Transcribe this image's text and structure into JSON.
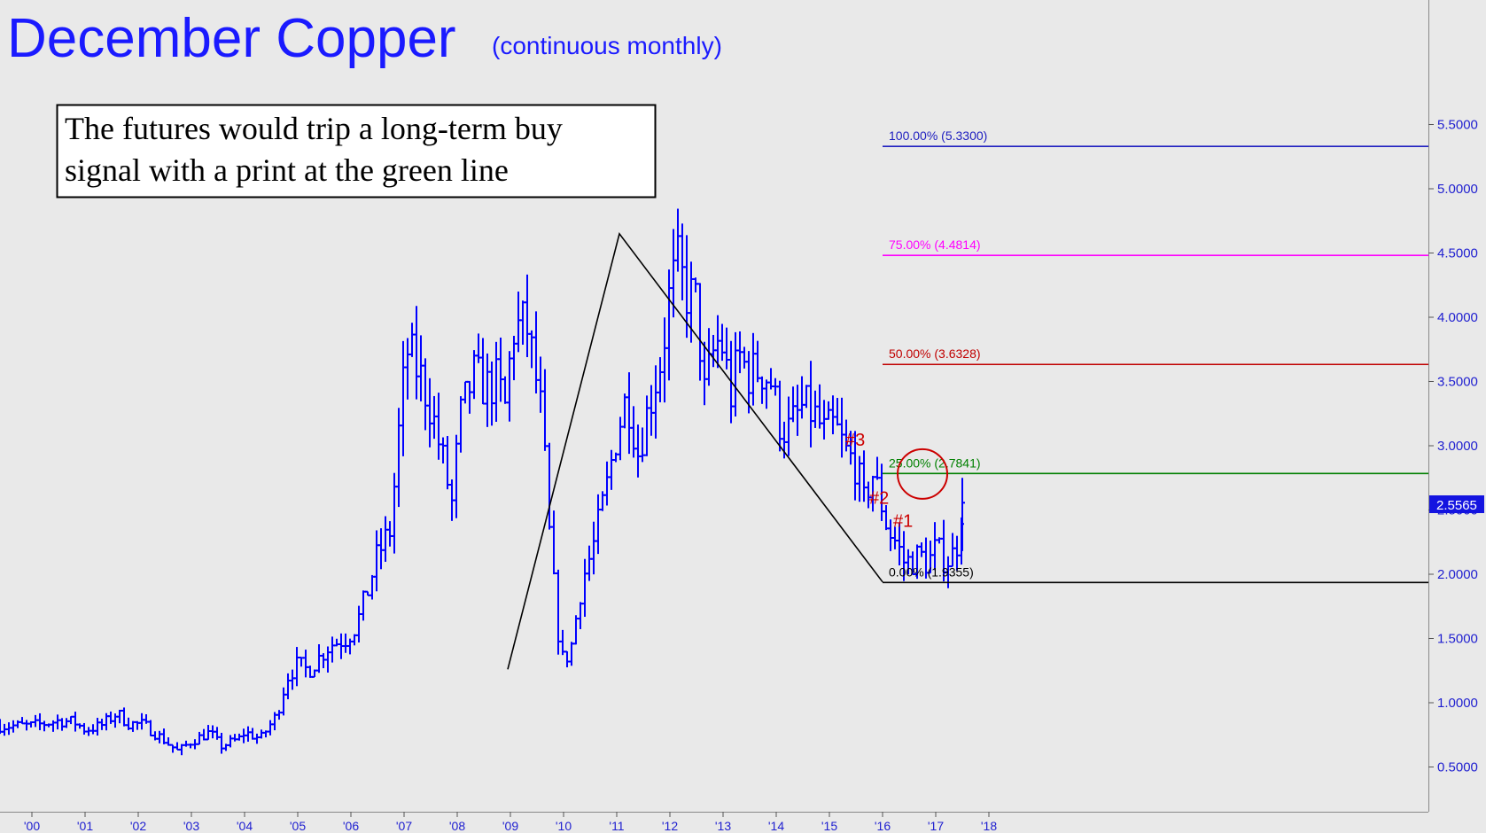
{
  "chart_data": {
    "type": "ohlc-bar",
    "title": "December Copper",
    "subtitle": "(continuous monthly)",
    "annotation": [
      "The futures would trip a long-term buy",
      "signal with a print at the green line"
    ],
    "x_tick_labels": [
      "'00",
      "'01",
      "'02",
      "'03",
      "'04",
      "'05",
      "'06",
      "'07",
      "'08",
      "'09",
      "'10",
      "'11",
      "'12",
      "'13",
      "'14",
      "'15",
      "'16",
      "'17",
      "'18"
    ],
    "y_tick_labels": [
      "0.5000",
      "1.0000",
      "1.5000",
      "2.0000",
      "2.5000",
      "3.0000",
      "3.5000",
      "4.0000",
      "4.5000",
      "5.0000",
      "5.5000"
    ],
    "ylim": [
      0.15,
      6.0
    ],
    "xlim": [
      1999.4,
      2019.9
    ],
    "last_price": "2.5565",
    "last_price_value": 2.5565,
    "colors": {
      "bars": "#0000ff",
      "background": "#e9e9e9",
      "fib_100": "#2020c0",
      "fib_75": "#ff00ff",
      "fib_50": "#c00000",
      "fib_25": "#008000",
      "fib_0": "#000000",
      "wave_labels": "#cc0000",
      "circle": "#cc0000"
    },
    "fib_levels": [
      {
        "label": "100.00% (5.3300)",
        "value": 5.33,
        "color": "#2020c0",
        "start": 2016.0
      },
      {
        "label": "75.00% (4.4814)",
        "value": 4.4814,
        "color": "#ff00ff",
        "start": 2016.0
      },
      {
        "label": "50.00% (3.6328)",
        "value": 3.6328,
        "color": "#c00000",
        "start": 2016.0
      },
      {
        "label": "25.00% (2.7841)",
        "value": 2.7841,
        "color": "#008000",
        "start": 2016.0
      },
      {
        "label": "0.00% (1.9355)",
        "value": 1.9355,
        "color": "#000000",
        "start": 2016.0
      }
    ],
    "trendlines": [
      {
        "points": [
          [
            2008.95,
            1.26
          ],
          [
            2011.05,
            4.65
          ],
          [
            2016.0,
            1.94
          ]
        ]
      }
    ],
    "wave_labels": [
      {
        "text": "#3",
        "x": 2015.3,
        "y": 3.0
      },
      {
        "text": "#2",
        "x": 2015.75,
        "y": 2.55
      },
      {
        "text": "#1",
        "x": 2016.2,
        "y": 2.37
      }
    ],
    "circle": {
      "x": 2016.75,
      "y": 2.78
    },
    "series": [
      {
        "anchors": [
          [
            2000.0,
            0.82
          ],
          [
            2000.5,
            0.86
          ],
          [
            2000.8,
            0.85
          ],
          [
            2001.0,
            0.79
          ],
          [
            2001.3,
            0.82
          ],
          [
            2001.6,
            0.92
          ],
          [
            2001.8,
            0.84
          ],
          [
            2002.1,
            0.83
          ],
          [
            2002.45,
            0.72
          ],
          [
            2002.75,
            0.62
          ],
          [
            2003.0,
            0.7
          ],
          [
            2003.35,
            0.77
          ],
          [
            2003.55,
            0.66
          ],
          [
            2003.9,
            0.72
          ],
          [
            2004.0,
            0.77
          ],
          [
            2004.3,
            0.72
          ],
          [
            2004.6,
            0.9
          ],
          [
            2004.8,
            1.2
          ],
          [
            2005.0,
            1.3
          ],
          [
            2005.2,
            1.25
          ],
          [
            2005.6,
            1.45
          ],
          [
            2005.9,
            1.5
          ],
          [
            2006.1,
            1.6
          ],
          [
            2006.3,
            1.85
          ],
          [
            2006.5,
            2.15
          ],
          [
            2006.75,
            2.35
          ],
          [
            2006.9,
            3.1
          ],
          [
            2007.05,
            3.75
          ],
          [
            2007.3,
            3.55
          ],
          [
            2007.5,
            3.3
          ],
          [
            2007.75,
            2.85
          ],
          [
            2007.9,
            2.55
          ],
          [
            2008.05,
            3.2
          ],
          [
            2008.3,
            3.55
          ],
          [
            2008.55,
            3.45
          ],
          [
            2008.75,
            3.5
          ],
          [
            2008.9,
            3.3
          ],
          [
            2009.05,
            3.9
          ],
          [
            2009.3,
            3.95
          ],
          [
            2009.45,
            3.6
          ],
          [
            2009.6,
            3.2
          ],
          [
            2009.75,
            2.2
          ],
          [
            2009.9,
            1.55
          ],
          [
            2010.0,
            1.3
          ],
          [
            2010.15,
            1.45
          ],
          [
            2010.35,
            1.95
          ],
          [
            2010.55,
            2.2
          ],
          [
            2010.8,
            2.65
          ],
          [
            2011.0,
            3.1
          ],
          [
            2011.2,
            3.4
          ],
          [
            2011.4,
            2.95
          ],
          [
            2011.6,
            3.3
          ],
          [
            2011.85,
            3.7
          ],
          [
            2012.0,
            4.2
          ],
          [
            2012.15,
            4.4
          ],
          [
            2012.3,
            4.2
          ],
          [
            2012.5,
            4.1
          ],
          [
            2012.65,
            3.4
          ],
          [
            2012.8,
            3.7
          ],
          [
            2012.95,
            3.85
          ],
          [
            2013.15,
            3.4
          ],
          [
            2013.3,
            3.7
          ],
          [
            2013.5,
            3.55
          ],
          [
            2013.7,
            3.6
          ],
          [
            2013.9,
            3.5
          ],
          [
            2014.05,
            3.2
          ],
          [
            2014.2,
            3.1
          ],
          [
            2014.5,
            3.3
          ],
          [
            2014.7,
            3.25
          ],
          [
            2014.9,
            3.1
          ],
          [
            2015.1,
            3.15
          ],
          [
            2015.3,
            2.95
          ],
          [
            2015.5,
            2.85
          ],
          [
            2015.65,
            2.55
          ],
          [
            2015.8,
            2.8
          ],
          [
            2015.95,
            2.6
          ],
          [
            2016.1,
            2.35
          ],
          [
            2016.25,
            2.25
          ],
          [
            2016.4,
            2.1
          ],
          [
            2016.55,
            2.1
          ],
          [
            2016.7,
            2.15
          ],
          [
            2016.85,
            2.08
          ],
          [
            2017.0,
            2.2
          ],
          [
            2017.2,
            2.1
          ],
          [
            2017.38,
            2.18
          ],
          [
            2017.5,
            2.56
          ]
        ]
      }
    ]
  }
}
